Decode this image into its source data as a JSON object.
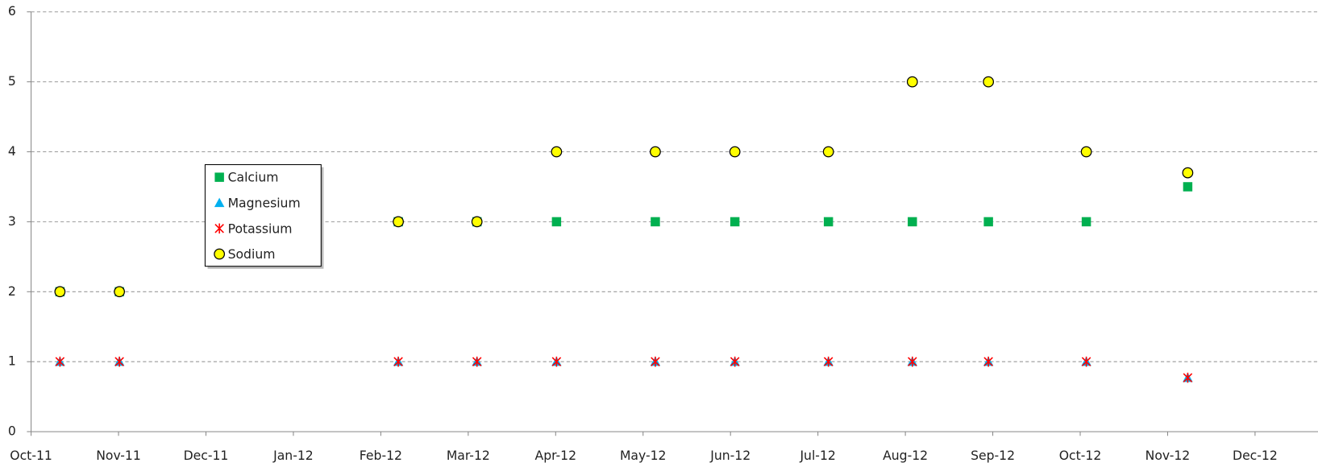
{
  "chart_data": {
    "type": "scatter",
    "x": [
      0.33,
      1.01,
      4.2,
      5.1,
      6.01,
      7.14,
      8.05,
      9.12,
      10.08,
      10.95,
      12.07,
      13.23
    ],
    "series": [
      {
        "name": "Calcium",
        "color": "#00b050",
        "marker": "square",
        "values": [
          2,
          2,
          3,
          3,
          3,
          3,
          3,
          3,
          3,
          3,
          3,
          3.5
        ]
      },
      {
        "name": "Magnesium",
        "color": "#00b0f0",
        "marker": "triangle",
        "values": [
          1,
          1,
          1,
          1,
          1,
          1,
          1,
          1,
          1,
          1,
          1,
          0.77
        ]
      },
      {
        "name": "Potassium",
        "color": "#ff0000",
        "marker": "star",
        "values": [
          1,
          1,
          1,
          1,
          1,
          1,
          1,
          1,
          1,
          1,
          1,
          0.77
        ]
      },
      {
        "name": "Sodium",
        "color": "#ffff00",
        "marker": "circle",
        "values": [
          2,
          2,
          3,
          3,
          4,
          4,
          4,
          4,
          5,
          5,
          4,
          3.7
        ]
      }
    ],
    "xlim": [
      0,
      14.72
    ],
    "xticks": [
      {
        "value": 0,
        "label": "Oct-11"
      },
      {
        "value": 1,
        "label": "Nov-11"
      },
      {
        "value": 2,
        "label": "Dec-11"
      },
      {
        "value": 3,
        "label": "Jan-12"
      },
      {
        "value": 4,
        "label": "Feb-12"
      },
      {
        "value": 5,
        "label": "Mar-12"
      },
      {
        "value": 6,
        "label": "Apr-12"
      },
      {
        "value": 7,
        "label": "May-12"
      },
      {
        "value": 8,
        "label": "Jun-12"
      },
      {
        "value": 9,
        "label": "Jul-12"
      },
      {
        "value": 10,
        "label": "Aug-12"
      },
      {
        "value": 11,
        "label": "Sep-12"
      },
      {
        "value": 12,
        "label": "Oct-12"
      },
      {
        "value": 13,
        "label": "Nov-12"
      },
      {
        "value": 14,
        "label": "Dec-12"
      }
    ],
    "ylim": [
      0,
      6
    ],
    "yticks": [
      0,
      1,
      2,
      3,
      4,
      5,
      6
    ],
    "grid": true,
    "legend": "upper left"
  }
}
